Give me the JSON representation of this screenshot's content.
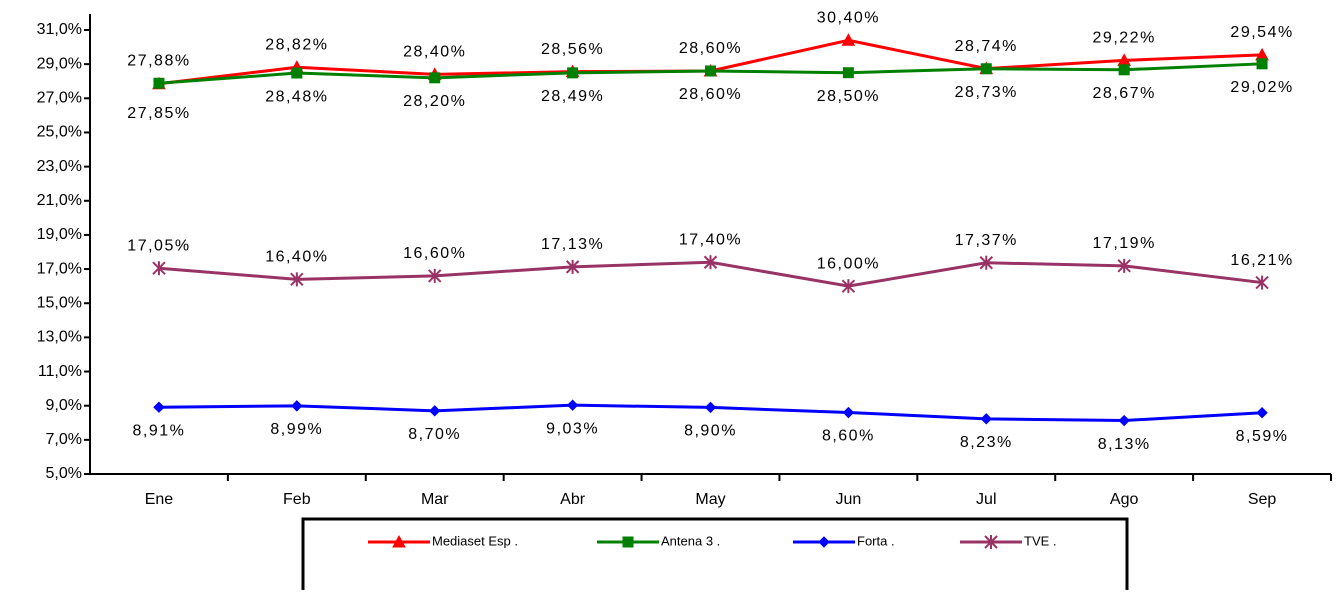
{
  "chart_data": {
    "type": "line",
    "categories": [
      "Ene",
      "Feb",
      "Mar",
      "Abr",
      "May",
      "Jun",
      "Jul",
      "Ago",
      "Sep"
    ],
    "ylim": [
      5,
      31
    ],
    "yticks": [
      {
        "value": 5,
        "label": "5,0%"
      },
      {
        "value": 7,
        "label": "7,0%"
      },
      {
        "value": 9,
        "label": "9,0%"
      },
      {
        "value": 11,
        "label": "11,0%"
      },
      {
        "value": 13,
        "label": "13,0%"
      },
      {
        "value": 15,
        "label": "15,0%"
      },
      {
        "value": 17,
        "label": "17,0%"
      },
      {
        "value": 19,
        "label": "19,0%"
      },
      {
        "value": 21,
        "label": "21,0%"
      },
      {
        "value": 23,
        "label": "23,0%"
      },
      {
        "value": 25,
        "label": "25,0%"
      },
      {
        "value": 27,
        "label": "27,0%"
      },
      {
        "value": 29,
        "label": "29,0%"
      },
      {
        "value": 31,
        "label": "31,0%"
      }
    ],
    "grid": false,
    "legend": "bottom",
    "series": [
      {
        "name": "Mediaset Esp .",
        "color": "#ff0000",
        "marker": "triangle",
        "values": [
          27.85,
          28.82,
          28.4,
          28.56,
          28.6,
          30.4,
          28.74,
          29.22,
          29.54
        ],
        "value_labels": [
          "27,85%",
          "28,82%",
          "28,40%",
          "28,56%",
          "28,60%",
          "30,40%",
          "28,74%",
          "29,22%",
          "29,54%"
        ]
      },
      {
        "name": "Antena 3 .",
        "color": "#008000",
        "marker": "square",
        "values": [
          27.88,
          28.48,
          28.2,
          28.49,
          28.6,
          28.5,
          28.73,
          28.67,
          29.02
        ],
        "value_labels": [
          "27,88%",
          "28,48%",
          "28,20%",
          "28,49%",
          "28,60%",
          "28,50%",
          "28,73%",
          "28,67%",
          "29,02%"
        ]
      },
      {
        "name": "Forta .",
        "color": "#0000ff",
        "marker": "diamond",
        "values": [
          8.91,
          8.99,
          8.7,
          9.03,
          8.9,
          8.6,
          8.23,
          8.13,
          8.59
        ],
        "value_labels": [
          "8,91%",
          "8,99%",
          "8,70%",
          "9,03%",
          "8,90%",
          "8,60%",
          "8,23%",
          "8,13%",
          "8,59%"
        ]
      },
      {
        "name": "TVE .",
        "color": "#993366",
        "marker": "asterisk",
        "values": [
          17.05,
          16.4,
          16.6,
          17.13,
          17.4,
          16.0,
          17.37,
          17.19,
          16.21
        ],
        "value_labels": [
          "17,05%",
          "16,40%",
          "16,60%",
          "17,13%",
          "17,40%",
          "16,00%",
          "17,37%",
          "17,19%",
          "16,21%"
        ]
      }
    ]
  }
}
